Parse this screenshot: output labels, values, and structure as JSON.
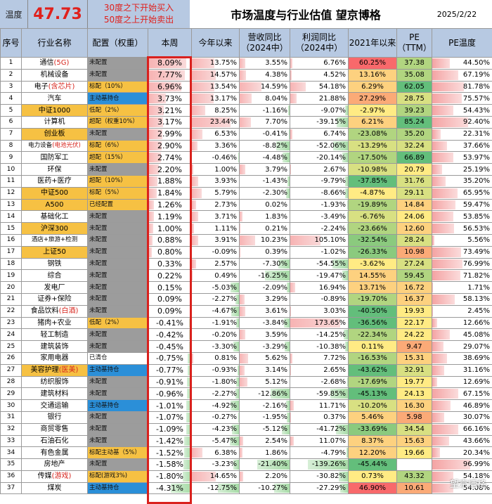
{
  "header": {
    "label": "温度",
    "temperature": "47.73",
    "rule_line1": "30度之下开始买入",
    "rule_line2": "50度之上开始卖出",
    "title": "市场温度与行业估值 望京博格",
    "date": "2025/2/22"
  },
  "watermark": "望京博格",
  "chart_data": {
    "type": "table",
    "title": "市场温度与行业估值 望京博格",
    "columns": [
      "序号",
      "行业名称",
      "配置（权重）",
      "本周",
      "今年以来",
      "营收同比（2024中）",
      "利润同比（2024中）",
      "2021年以来",
      "PE（TTM）",
      "PE温度"
    ],
    "rows": [
      {
        "idx": "1",
        "name": "通信",
        "name_tag": "(5G)",
        "alloc": "未配置",
        "alloc_type": "none",
        "week": "8.09%",
        "ytd": "13.75%",
        "rev": "3.55%",
        "profit": "6.76%",
        "since": "60.25%",
        "pe": "37.38",
        "pet": "44.50%"
      },
      {
        "idx": "2",
        "name": "机械设备",
        "name_tag": "",
        "alloc": "未配置",
        "alloc_type": "none",
        "week": "7.77%",
        "ytd": "14.57%",
        "rev": "4.38%",
        "profit": "4.52%",
        "since": "13.16%",
        "pe": "35.08",
        "pet": "67.19%"
      },
      {
        "idx": "3",
        "name": "电子",
        "name_tag": "(含芯片)",
        "alloc": "标配（10%）",
        "alloc_type": "over",
        "week": "6.96%",
        "ytd": "13.54%",
        "rev": "14.59%",
        "profit": "54.18%",
        "since": "6.29%",
        "pe": "62.05",
        "pet": "81.78%"
      },
      {
        "idx": "4",
        "name": "汽车",
        "name_tag": "",
        "alloc": "主动基持仓",
        "alloc_type": "fund",
        "week": "3.73%",
        "ytd": "13.17%",
        "rev": "8.04%",
        "profit": "21.88%",
        "since": "27.29%",
        "pe": "28.75",
        "pet": "75.57%"
      },
      {
        "idx": "5",
        "name": "中证1000",
        "name_tag": "",
        "alloc": "低配（2%）",
        "alloc_type": "under",
        "week": "3.21%",
        "ytd": "8.25%",
        "rev": "-1.16%",
        "profit": "-9.07%",
        "since": "-2.97%",
        "pe": "39.23",
        "pet": "54.43%",
        "hl": true
      },
      {
        "idx": "6",
        "name": "计算机",
        "name_tag": "",
        "alloc": "超配（权重10%）",
        "alloc_type": "over",
        "week": "3.17%",
        "ytd": "23.44%",
        "rev": "7.70%",
        "profit": "-39.15%",
        "since": "6.21%",
        "pe": "85.24",
        "pet": "92.40%"
      },
      {
        "idx": "7",
        "name": "创业板",
        "name_tag": "",
        "alloc": "未配置",
        "alloc_type": "none",
        "week": "2.99%",
        "ytd": "6.53%",
        "rev": "-0.41%",
        "profit": "6.74%",
        "since": "-23.08%",
        "pe": "35.20",
        "pet": "22.31%",
        "hl": true
      },
      {
        "idx": "8",
        "name": "电力设备",
        "name_tag": "(电池光伏)",
        "alloc": "标配（6%）",
        "alloc_type": "over",
        "week": "2.90%",
        "ytd": "3.36%",
        "rev": "-8.82%",
        "profit": "-52.06%",
        "since": "-13.29%",
        "pe": "32.24",
        "pet": "37.66%",
        "small": true
      },
      {
        "idx": "9",
        "name": "国防军工",
        "name_tag": "",
        "alloc": "超配（15%）",
        "alloc_type": "over",
        "week": "2.74%",
        "ytd": "-0.46%",
        "rev": "-4.48%",
        "profit": "-20.14%",
        "since": "-17.50%",
        "pe": "66.89",
        "pet": "53.97%"
      },
      {
        "idx": "10",
        "name": "环保",
        "name_tag": "",
        "alloc": "未配置",
        "alloc_type": "none",
        "week": "2.20%",
        "ytd": "1.00%",
        "rev": "3.79%",
        "profit": "2.67%",
        "since": "-10.98%",
        "pe": "20.79",
        "pet": "25.19%"
      },
      {
        "idx": "11",
        "name": "医药+医疗",
        "name_tag": "",
        "alloc": "超配（10%）",
        "alloc_type": "over",
        "week": "1.88%",
        "ytd": "3.93%",
        "rev": "-1.43%",
        "profit": "-9.79%",
        "since": "-37.85%",
        "pe": "31.76",
        "pet": "35.20%"
      },
      {
        "idx": "12",
        "name": "中证500",
        "name_tag": "",
        "alloc": "标配（5%）",
        "alloc_type": "over",
        "week": "1.84%",
        "ytd": "5.79%",
        "rev": "-2.30%",
        "profit": "-8.66%",
        "since": "-4.87%",
        "pe": "29.11",
        "pet": "65.95%",
        "hl": true
      },
      {
        "idx": "13",
        "name": "A500",
        "name_tag": "",
        "alloc": "已经配置",
        "alloc_type": "over",
        "week": "1.26%",
        "ytd": "2.73%",
        "rev": "0.02%",
        "profit": "-1.93%",
        "since": "-19.89%",
        "pe": "14.84",
        "pet": "59.47%",
        "hl": true
      },
      {
        "idx": "14",
        "name": "基础化工",
        "name_tag": "",
        "alloc": "未配置",
        "alloc_type": "none",
        "week": "1.19%",
        "ytd": "3.71%",
        "rev": "1.83%",
        "profit": "-3.49%",
        "since": "-6.76%",
        "pe": "24.06",
        "pet": "53.85%"
      },
      {
        "idx": "15",
        "name": "沪深300",
        "name_tag": "",
        "alloc": "未配置",
        "alloc_type": "none",
        "week": "1.00%",
        "ytd": "1.11%",
        "rev": "0.21%",
        "profit": "-2.24%",
        "since": "-23.66%",
        "pe": "12.60",
        "pet": "56.53%",
        "hl": true
      },
      {
        "idx": "16",
        "name": "酒店+旅游+检测",
        "name_tag": "",
        "alloc": "未配置",
        "alloc_type": "none",
        "week": "0.88%",
        "ytd": "3.91%",
        "rev": "10.23%",
        "profit": "105.10%",
        "since": "-32.54%",
        "pe": "28.24",
        "pet": "5.56%",
        "small": true
      },
      {
        "idx": "17",
        "name": "上证50",
        "name_tag": "",
        "alloc": "未配置",
        "alloc_type": "none",
        "week": "0.80%",
        "ytd": "-0.09%",
        "rev": "0.39%",
        "profit": "-1.02%",
        "since": "-26.33%",
        "pe": "10.98",
        "pet": "73.49%",
        "hl": true
      },
      {
        "idx": "18",
        "name": "钢铁",
        "name_tag": "",
        "alloc": "未配置",
        "alloc_type": "none",
        "week": "0.33%",
        "ytd": "2.57%",
        "rev": "-7.30%",
        "profit": "-54.55%",
        "since": "-3.62%",
        "pe": "27.24",
        "pet": "76.99%"
      },
      {
        "idx": "19",
        "name": "综合",
        "name_tag": "",
        "alloc": "未配置",
        "alloc_type": "none",
        "week": "0.22%",
        "ytd": "0.49%",
        "rev": "-16.25%",
        "profit": "-19.47%",
        "since": "14.55%",
        "pe": "59.45",
        "pet": "71.82%"
      },
      {
        "idx": "20",
        "name": "发电厂",
        "name_tag": "",
        "alloc": "未配置",
        "alloc_type": "none",
        "week": "0.15%",
        "ytd": "-5.03%",
        "rev": "-2.09%",
        "profit": "16.94%",
        "since": "13.71%",
        "pe": "16.72",
        "pet": "1.71%"
      },
      {
        "idx": "21",
        "name": "证券+保险",
        "name_tag": "",
        "alloc": "未配置",
        "alloc_type": "none",
        "week": "0.09%",
        "ytd": "-2.27%",
        "rev": "3.29%",
        "profit": "-0.89%",
        "since": "-19.70%",
        "pe": "16.37",
        "pet": "58.13%"
      },
      {
        "idx": "22",
        "name": "食品饮料",
        "name_tag": "(白酒)",
        "alloc": "未配置",
        "alloc_type": "none",
        "week": "0.09%",
        "ytd": "-4.67%",
        "rev": "3.61%",
        "profit": "3.03%",
        "since": "-40.50%",
        "pe": "19.93",
        "pet": "2.45%"
      },
      {
        "idx": "23",
        "name": "猪肉+农业",
        "name_tag": "",
        "alloc": "低配（2%）",
        "alloc_type": "under",
        "week": "-0.41%",
        "ytd": "-1.91%",
        "rev": "-3.84%",
        "profit": "173.65%",
        "since": "-36.56%",
        "pe": "22.17",
        "pet": "12.66%"
      },
      {
        "idx": "24",
        "name": "轻工制造",
        "name_tag": "",
        "alloc": "未配置",
        "alloc_type": "none",
        "week": "-0.42%",
        "ytd": "-0.20%",
        "rev": "3.59%",
        "profit": "-14.25%",
        "since": "-22.34%",
        "pe": "24.22",
        "pet": "45.08%"
      },
      {
        "idx": "25",
        "name": "建筑装饰",
        "name_tag": "",
        "alloc": "未配置",
        "alloc_type": "none",
        "week": "-0.45%",
        "ytd": "-3.30%",
        "rev": "-3.29%",
        "profit": "-10.38%",
        "since": "0.11%",
        "pe": "9.47",
        "pet": "29.07%"
      },
      {
        "idx": "26",
        "name": "家用电器",
        "name_tag": "",
        "alloc": "已清仓",
        "alloc_type": "clear",
        "week": "-0.75%",
        "ytd": "0.81%",
        "rev": "5.62%",
        "profit": "7.72%",
        "since": "-16.53%",
        "pe": "15.31",
        "pet": "38.69%"
      },
      {
        "idx": "27",
        "name": "美容护理",
        "name_tag": "(医美)",
        "alloc": "主动基持仓",
        "alloc_type": "fund",
        "week": "-0.77%",
        "ytd": "-0.93%",
        "rev": "3.14%",
        "profit": "2.65%",
        "since": "-43.62%",
        "pe": "32.91",
        "pet": "31.16%",
        "hl": true
      },
      {
        "idx": "28",
        "name": "纺织服饰",
        "name_tag": "",
        "alloc": "未配置",
        "alloc_type": "none",
        "week": "-0.91%",
        "ytd": "-1.80%",
        "rev": "5.12%",
        "profit": "-2.68%",
        "since": "-17.69%",
        "pe": "19.77",
        "pet": "12.69%"
      },
      {
        "idx": "29",
        "name": "建筑材料",
        "name_tag": "",
        "alloc": "未配置",
        "alloc_type": "none",
        "week": "-0.96%",
        "ytd": "-2.27%",
        "rev": "-12.86%",
        "profit": "-59.85%",
        "since": "-45.13%",
        "pe": "24.13",
        "pet": "67.15%"
      },
      {
        "idx": "30",
        "name": "交通运输",
        "name_tag": "",
        "alloc": "主动基持仓",
        "alloc_type": "fund",
        "week": "-1.01%",
        "ytd": "-4.92%",
        "rev": "-2.16%",
        "profit": "11.71%",
        "since": "-10.20%",
        "pe": "16.30",
        "pet": "46.89%"
      },
      {
        "idx": "31",
        "name": "银行",
        "name_tag": "",
        "alloc": "未配置",
        "alloc_type": "none",
        "week": "-1.07%",
        "ytd": "-0.27%",
        "rev": "-1.95%",
        "profit": "0.37%",
        "since": "5.46%",
        "pe": "5.98",
        "pet": "30.07%"
      },
      {
        "idx": "32",
        "name": "商贸零售",
        "name_tag": "",
        "alloc": "未配置",
        "alloc_type": "none",
        "week": "-1.09%",
        "ytd": "-4.23%",
        "rev": "-5.12%",
        "profit": "-41.72%",
        "since": "-33.69%",
        "pe": "34.54",
        "pet": "66.16%"
      },
      {
        "idx": "33",
        "name": "石油石化",
        "name_tag": "",
        "alloc": "未配置",
        "alloc_type": "none",
        "week": "-1.42%",
        "ytd": "-5.47%",
        "rev": "2.54%",
        "profit": "11.07%",
        "since": "8.37%",
        "pe": "15.63",
        "pet": "43.66%"
      },
      {
        "idx": "34",
        "name": "有色金属",
        "name_tag": "",
        "alloc": "标配主动基（5%）",
        "alloc_type": "over",
        "week": "-1.52%",
        "ytd": "6.38%",
        "rev": "1.86%",
        "profit": "-4.79%",
        "since": "12.20%",
        "pe": "19.66",
        "pet": "20.34%"
      },
      {
        "idx": "35",
        "name": "房地产",
        "name_tag": "",
        "alloc": "未配置",
        "alloc_type": "none",
        "week": "-1.58%",
        "ytd": "-3.23%",
        "rev": "-21.40%",
        "profit": "-139.26%",
        "since": "-45.44%",
        "pe": "",
        "pet": "96.99%"
      },
      {
        "idx": "36",
        "name": "传媒",
        "name_tag": "(游戏)",
        "alloc": "标配(游戏3%)",
        "alloc_type": "over",
        "week": "-1.80%",
        "ytd": "14.65%",
        "rev": "2.20%",
        "profit": "-30.82%",
        "since": "0.73%",
        "pe": "43.32",
        "pet": "54.18%"
      },
      {
        "idx": "37",
        "name": "煤炭",
        "name_tag": "",
        "alloc": "主动基持仓",
        "alloc_type": "fund",
        "week": "-4.31%",
        "ytd": "-12.75%",
        "rev": "-10.27%",
        "profit": "-27.29%",
        "since": "46.90%",
        "pe": "10.61",
        "pet": "54.08%"
      }
    ]
  }
}
